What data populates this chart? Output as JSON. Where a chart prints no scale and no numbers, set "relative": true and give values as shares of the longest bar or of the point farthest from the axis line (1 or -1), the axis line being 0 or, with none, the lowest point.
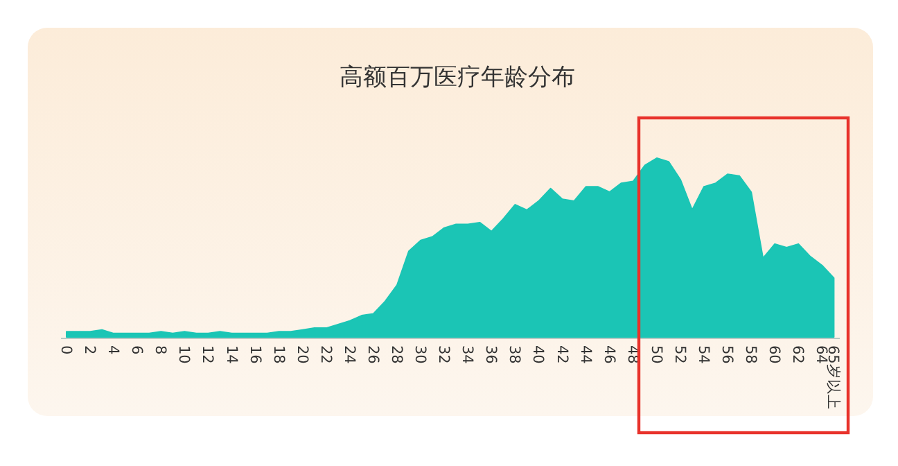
{
  "chart_data": {
    "type": "area",
    "title": "高额百万医疗年龄分布",
    "relative": true,
    "color": "#1bc5b5",
    "categories": [
      "0",
      null,
      "2",
      null,
      "4",
      null,
      "6",
      null,
      "8",
      null,
      "10",
      null,
      "12",
      null,
      "14",
      null,
      "16",
      null,
      "18",
      null,
      "20",
      null,
      "22",
      null,
      "24",
      null,
      "26",
      null,
      "28",
      null,
      "30",
      null,
      "32",
      null,
      "34",
      null,
      "36",
      null,
      "38",
      null,
      "40",
      null,
      "42",
      null,
      "44",
      null,
      "46",
      null,
      "48",
      null,
      "50",
      null,
      "52",
      null,
      "54",
      null,
      "56",
      null,
      "58",
      null,
      "60",
      null,
      "62",
      null,
      "64",
      "65岁以上"
    ],
    "values": [
      0.03,
      0.03,
      0.03,
      0.04,
      0.02,
      0.02,
      0.02,
      0.02,
      0.03,
      0.02,
      0.03,
      0.02,
      0.02,
      0.03,
      0.02,
      0.02,
      0.02,
      0.02,
      0.03,
      0.03,
      0.04,
      0.05,
      0.05,
      0.07,
      0.09,
      0.12,
      0.13,
      0.2,
      0.29,
      0.48,
      0.54,
      0.56,
      0.61,
      0.63,
      0.63,
      0.64,
      0.59,
      0.66,
      0.74,
      0.71,
      0.76,
      0.83,
      0.77,
      0.76,
      0.84,
      0.84,
      0.81,
      0.86,
      0.87,
      0.96,
      1,
      0.98,
      0.88,
      0.71,
      0.84,
      0.86,
      0.91,
      0.9,
      0.81,
      0.44,
      0.52,
      0.5,
      0.52,
      0.45,
      0.4,
      0.33
    ]
  }
}
